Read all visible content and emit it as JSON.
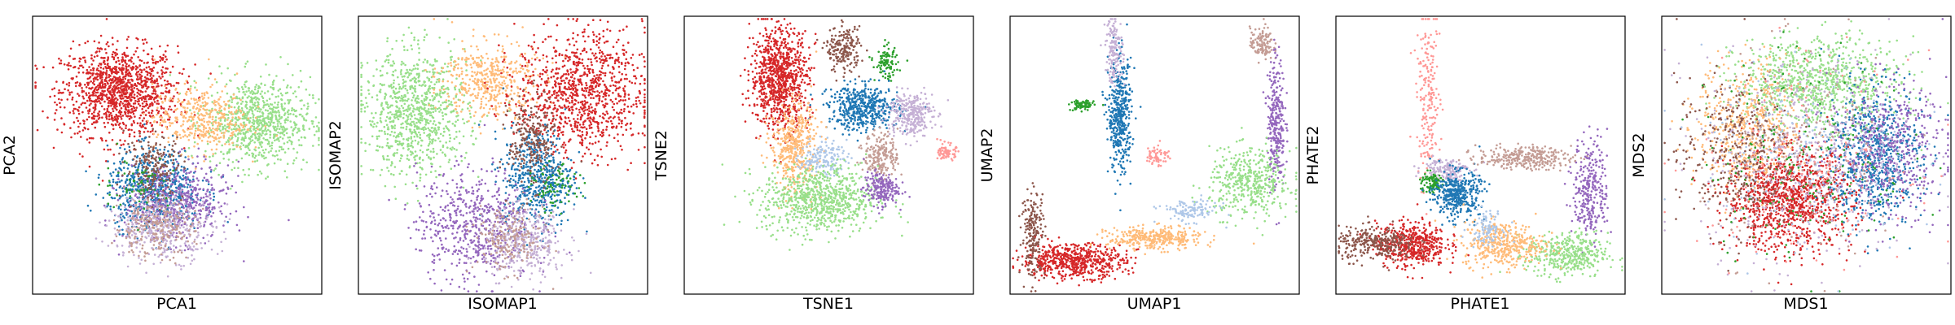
{
  "palette": [
    "#1f77b4",
    "#aec7e8",
    "#ffbb78",
    "#2ca02c",
    "#98df8a",
    "#d62728",
    "#ff9896",
    "#9467bd",
    "#c5b0d5",
    "#8c564b",
    "#c49c94"
  ],
  "chart_data": [
    {
      "type": "scatter",
      "title": "",
      "xlabel": "PCA1",
      "ylabel": "PCA2",
      "grid": false,
      "legend": "none",
      "xlim": [
        0,
        100
      ],
      "ylim": [
        0,
        100
      ],
      "series": [
        {
          "color": "#d62728",
          "center": [
            30,
            73
          ],
          "spread": [
            10,
            8
          ],
          "n": 1200
        },
        {
          "color": "#98df8a",
          "center": [
            78,
            62
          ],
          "spread": [
            9,
            8
          ],
          "n": 800
        },
        {
          "color": "#ffbb78",
          "center": [
            58,
            63
          ],
          "spread": [
            8,
            6
          ],
          "n": 400
        },
        {
          "color": "#1f77b4",
          "center": [
            42,
            38
          ],
          "spread": [
            8,
            7
          ],
          "n": 650
        },
        {
          "color": "#9467bd",
          "center": [
            50,
            33
          ],
          "spread": [
            9,
            7
          ],
          "n": 500
        },
        {
          "color": "#c5b0d5",
          "center": [
            45,
            24
          ],
          "spread": [
            9,
            6
          ],
          "n": 400
        },
        {
          "color": "#c49c94",
          "center": [
            42,
            24
          ],
          "spread": [
            7,
            5
          ],
          "n": 250
        },
        {
          "color": "#8c564b",
          "center": [
            42,
            46
          ],
          "spread": [
            5,
            6
          ],
          "n": 200
        },
        {
          "color": "#2ca02c",
          "center": [
            36,
            40
          ],
          "spread": [
            6,
            5
          ],
          "n": 60
        }
      ]
    },
    {
      "type": "scatter",
      "title": "",
      "xlabel": "ISOMAP1",
      "ylabel": "ISOMAP2",
      "grid": false,
      "legend": "none",
      "xlim": [
        0,
        100
      ],
      "ylim": [
        0,
        100
      ],
      "series": [
        {
          "color": "#98df8a",
          "center": [
            20,
            65
          ],
          "spread": [
            9,
            11
          ],
          "n": 900
        },
        {
          "color": "#ffbb78",
          "center": [
            45,
            77
          ],
          "spread": [
            8,
            7
          ],
          "n": 450
        },
        {
          "color": "#d62728",
          "center": [
            77,
            72
          ],
          "spread": [
            11,
            11
          ],
          "n": 1000
        },
        {
          "color": "#1f77b4",
          "center": [
            62,
            42
          ],
          "spread": [
            6,
            9
          ],
          "n": 550
        },
        {
          "color": "#9467bd",
          "center": [
            40,
            25
          ],
          "spread": [
            10,
            10
          ],
          "n": 600
        },
        {
          "color": "#c5b0d5",
          "center": [
            58,
            18
          ],
          "spread": [
            7,
            6
          ],
          "n": 350
        },
        {
          "color": "#c49c94",
          "center": [
            52,
            20
          ],
          "spread": [
            6,
            6
          ],
          "n": 200
        },
        {
          "color": "#8c564b",
          "center": [
            60,
            55
          ],
          "spread": [
            4,
            8
          ],
          "n": 250
        },
        {
          "color": "#2ca02c",
          "center": [
            68,
            38
          ],
          "spread": [
            4,
            4
          ],
          "n": 80
        }
      ]
    },
    {
      "type": "scatter",
      "title": "",
      "xlabel": "TSNE1",
      "ylabel": "TSNE2",
      "grid": false,
      "legend": "none",
      "xlim": [
        0,
        100
      ],
      "ylim": [
        0,
        100
      ],
      "series": [
        {
          "color": "#d62728",
          "center": [
            33,
            78
          ],
          "spread": [
            5,
            9
          ],
          "n": 900
        },
        {
          "color": "#8c564b",
          "center": [
            55,
            88
          ],
          "spread": [
            3,
            4
          ],
          "n": 200
        },
        {
          "color": "#2ca02c",
          "center": [
            70,
            83
          ],
          "spread": [
            2,
            3
          ],
          "n": 100
        },
        {
          "color": "#1f77b4",
          "center": [
            62,
            67
          ],
          "spread": [
            6,
            4
          ],
          "n": 500
        },
        {
          "color": "#c5b0d5",
          "center": [
            78,
            65
          ],
          "spread": [
            4,
            4
          ],
          "n": 300
        },
        {
          "color": "#ff9896",
          "center": [
            91,
            51
          ],
          "spread": [
            1.5,
            1.5
          ],
          "n": 80
        },
        {
          "color": "#ffbb78",
          "center": [
            38,
            53
          ],
          "spread": [
            4,
            8
          ],
          "n": 450
        },
        {
          "color": "#aec7e8",
          "center": [
            48,
            49
          ],
          "spread": [
            4,
            3
          ],
          "n": 150
        },
        {
          "color": "#c49c94",
          "center": [
            68,
            50
          ],
          "spread": [
            3,
            4
          ],
          "n": 200
        },
        {
          "color": "#98df8a",
          "center": [
            47,
            34
          ],
          "spread": [
            10,
            6
          ],
          "n": 800
        },
        {
          "color": "#9467bd",
          "center": [
            68,
            38
          ],
          "spread": [
            3,
            3
          ],
          "n": 200
        }
      ]
    },
    {
      "type": "scatter",
      "title": "",
      "xlabel": "UMAP1",
      "ylabel": "UMAP2",
      "grid": false,
      "legend": "none",
      "xlim": [
        0,
        100
      ],
      "ylim": [
        0,
        100
      ],
      "series": [
        {
          "color": "#c49c94",
          "center": [
            87,
            90
          ],
          "spread": [
            2,
            3
          ],
          "n": 120
        },
        {
          "color": "#9467bd",
          "center": [
            92,
            62
          ],
          "spread": [
            1.5,
            12
          ],
          "n": 300
        },
        {
          "color": "#98df8a",
          "center": [
            83,
            40
          ],
          "spread": [
            7,
            6
          ],
          "n": 450
        },
        {
          "color": "#aec7e8",
          "center": [
            62,
            30
          ],
          "spread": [
            5,
            2
          ],
          "n": 120
        },
        {
          "color": "#ffbb78",
          "center": [
            50,
            20
          ],
          "spread": [
            8,
            2
          ],
          "n": 350
        },
        {
          "color": "#d62728",
          "center": [
            22,
            12
          ],
          "spread": [
            9,
            3
          ],
          "n": 600
        },
        {
          "color": "#8c564b",
          "center": [
            8,
            22
          ],
          "spread": [
            2,
            8
          ],
          "n": 200
        },
        {
          "color": "#1f77b4",
          "center": [
            38,
            64
          ],
          "spread": [
            2,
            10
          ],
          "n": 450
        },
        {
          "color": "#2ca02c",
          "center": [
            25,
            68
          ],
          "spread": [
            2,
            1
          ],
          "n": 80
        },
        {
          "color": "#c5b0d5",
          "center": [
            36,
            88
          ],
          "spread": [
            1.5,
            6
          ],
          "n": 150
        },
        {
          "color": "#ff9896",
          "center": [
            51,
            50
          ],
          "spread": [
            2,
            2
          ],
          "n": 60
        }
      ]
    },
    {
      "type": "scatter",
      "title": "",
      "xlabel": "PHATE1",
      "ylabel": "PHATE2",
      "grid": false,
      "legend": "none",
      "xlim": [
        0,
        100
      ],
      "ylim": [
        0,
        100
      ],
      "series": [
        {
          "color": "#ff9896",
          "center": [
            32,
            70
          ],
          "spread": [
            2,
            14
          ],
          "n": 200
        },
        {
          "color": "#c5b0d5",
          "center": [
            38,
            45
          ],
          "spread": [
            4,
            2
          ],
          "n": 150
        },
        {
          "color": "#2ca02c",
          "center": [
            33,
            40
          ],
          "spread": [
            2,
            2
          ],
          "n": 100
        },
        {
          "color": "#1f77b4",
          "center": [
            42,
            36
          ],
          "spread": [
            4,
            4
          ],
          "n": 400
        },
        {
          "color": "#c49c94",
          "center": [
            65,
            49
          ],
          "spread": [
            8,
            2
          ],
          "n": 300
        },
        {
          "color": "#9467bd",
          "center": [
            88,
            38
          ],
          "spread": [
            3,
            9
          ],
          "n": 300
        },
        {
          "color": "#98df8a",
          "center": [
            80,
            14
          ],
          "spread": [
            7,
            4
          ],
          "n": 400
        },
        {
          "color": "#ffbb78",
          "center": [
            58,
            18
          ],
          "spread": [
            7,
            4
          ],
          "n": 400
        },
        {
          "color": "#d62728",
          "center": [
            26,
            18
          ],
          "spread": [
            6,
            4
          ],
          "n": 500
        },
        {
          "color": "#8c564b",
          "center": [
            14,
            18
          ],
          "spread": [
            7,
            3
          ],
          "n": 300
        },
        {
          "color": "#aec7e8",
          "center": [
            52,
            24
          ],
          "spread": [
            3,
            3
          ],
          "n": 100
        }
      ]
    },
    {
      "type": "scatter",
      "title": "",
      "xlabel": "MDS1",
      "ylabel": "MDS2",
      "grid": false,
      "legend": "none",
      "xlim": [
        0,
        100
      ],
      "ylim": [
        0,
        100
      ],
      "series": [
        {
          "color": "#98df8a",
          "center": [
            54,
            76
          ],
          "spread": [
            14,
            8
          ],
          "n": 900
        },
        {
          "color": "#d62728",
          "center": [
            44,
            34
          ],
          "spread": [
            11,
            9
          ],
          "n": 1100
        },
        {
          "color": "#1f77b4",
          "center": [
            74,
            50
          ],
          "spread": [
            8,
            12
          ],
          "n": 700
        },
        {
          "color": "#9467bd",
          "center": [
            78,
            52
          ],
          "spread": [
            10,
            12
          ],
          "n": 500
        },
        {
          "color": "#ffbb78",
          "center": [
            30,
            60
          ],
          "spread": [
            9,
            12
          ],
          "n": 500
        },
        {
          "color": "#c5b0d5",
          "center": [
            50,
            50
          ],
          "spread": [
            18,
            18
          ],
          "n": 500
        },
        {
          "color": "#8c564b",
          "center": [
            25,
            50
          ],
          "spread": [
            10,
            14
          ],
          "n": 350
        },
        {
          "color": "#2ca02c",
          "center": [
            50,
            50
          ],
          "spread": [
            18,
            18
          ],
          "n": 200
        },
        {
          "color": "#aec7e8",
          "center": [
            50,
            50
          ],
          "spread": [
            18,
            18
          ],
          "n": 200
        },
        {
          "color": "#c49c94",
          "center": [
            50,
            50
          ],
          "spread": [
            18,
            18
          ],
          "n": 200
        },
        {
          "color": "#ff9896",
          "center": [
            50,
            50
          ],
          "spread": [
            18,
            18
          ],
          "n": 150
        }
      ]
    }
  ]
}
